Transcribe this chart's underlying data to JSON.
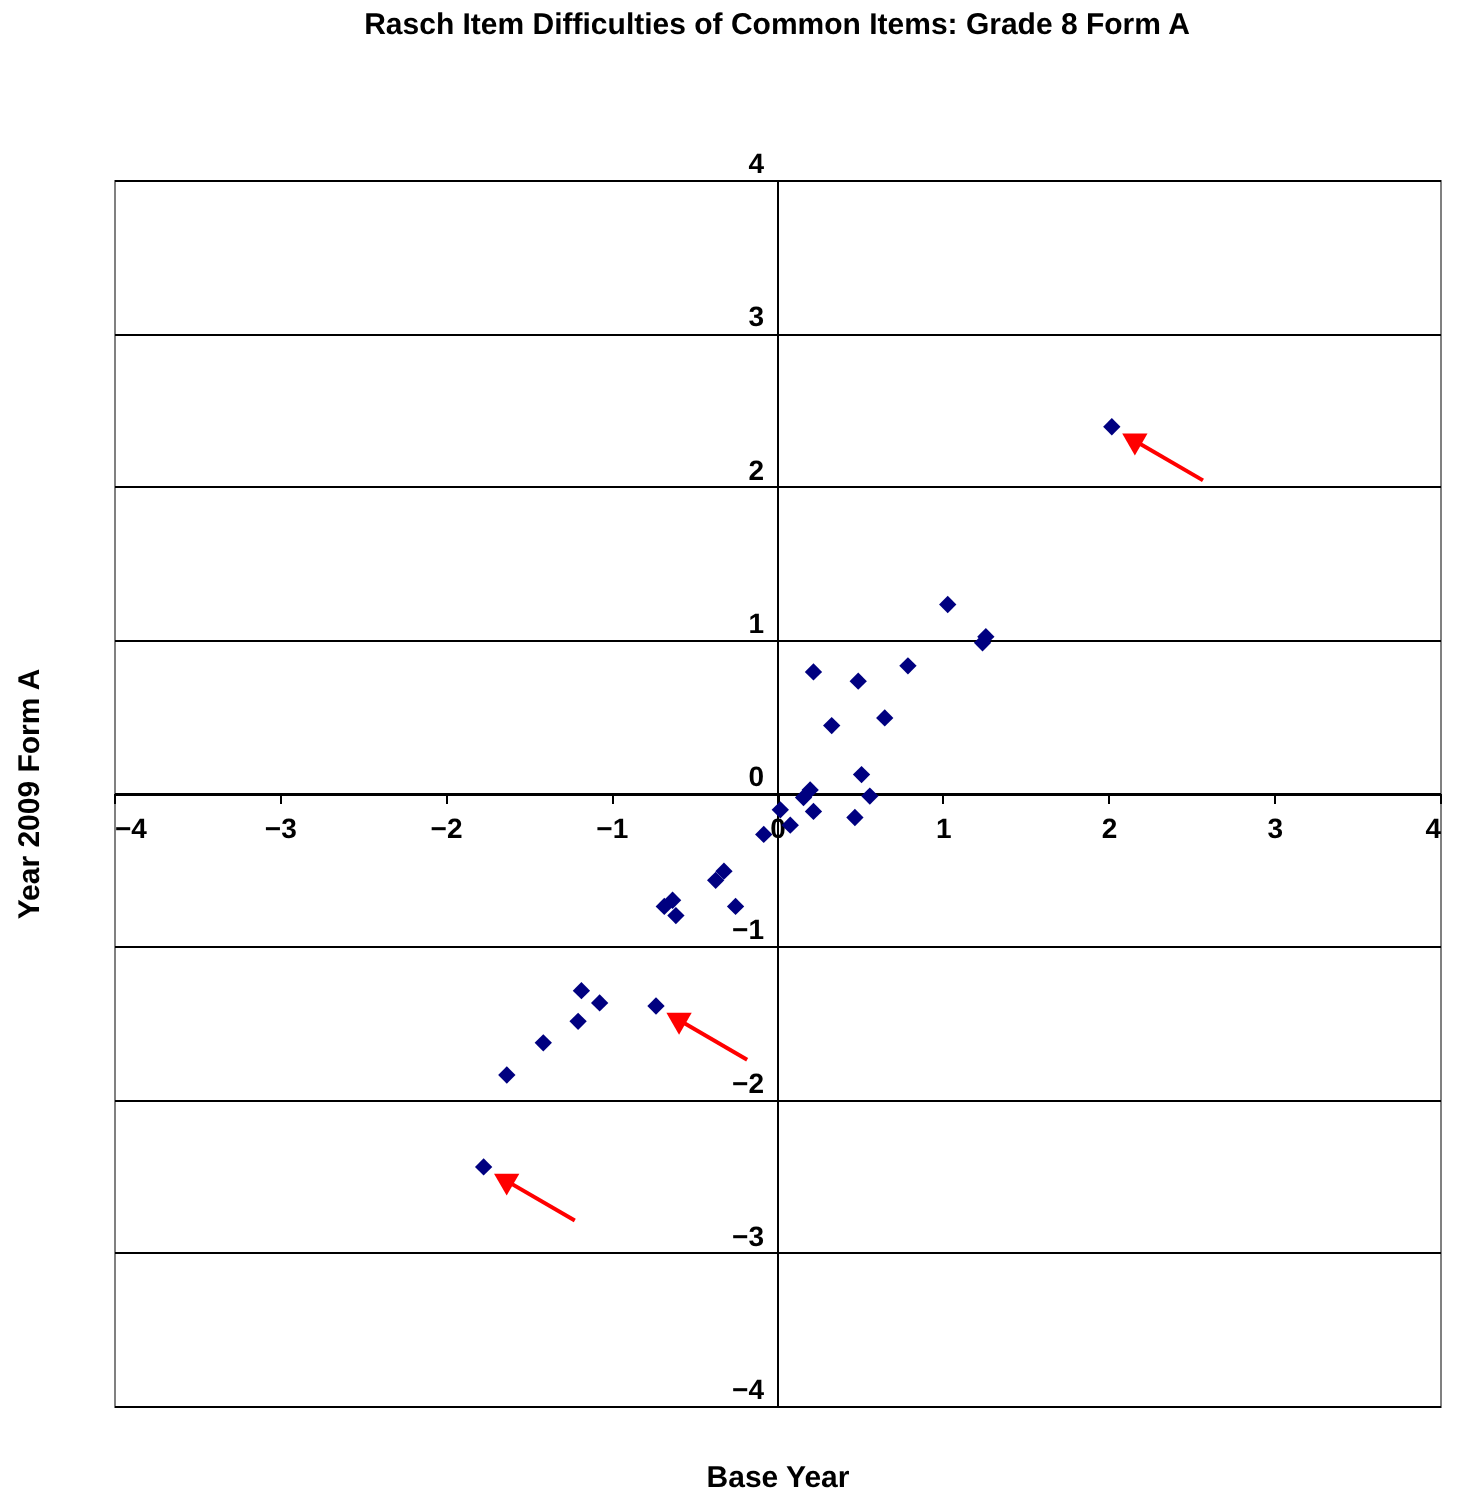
{
  "chart_data": {
    "type": "scatter",
    "title": "Rasch Item Difficulties of Common Items: Grade 8 Form A",
    "xlabel": "Base Year",
    "ylabel": "Year 2009 Form A",
    "x": [
      2.02,
      -0.73,
      -1.77,
      1.03,
      1.24,
      1.26,
      0.79,
      0.22,
      0.49,
      0.33,
      0.65,
      0.51,
      0.56,
      0.2,
      0.16,
      0.22,
      0.47,
      0.02,
      0.08,
      -0.08,
      -0.32,
      -0.37,
      -0.25,
      -0.68,
      -0.61,
      -0.63,
      -1.18,
      -1.07,
      -1.2,
      -1.41,
      -1.63
    ],
    "series": [
      {
        "color": "#000080",
        "values": [
          2.39,
          -1.39,
          -2.44,
          1.23,
          0.98,
          1.02,
          0.83,
          0.79,
          0.73,
          0.44,
          0.49,
          0.12,
          -0.02,
          0.02,
          -0.03,
          -0.12,
          -0.16,
          -0.11,
          -0.21,
          -0.27,
          -0.51,
          -0.57,
          -0.74,
          -0.74,
          -0.8,
          -0.7,
          -1.29,
          -1.37,
          -1.49,
          -1.63,
          -1.84
        ]
      }
    ],
    "xlim": [
      -4,
      4
    ],
    "ylim": [
      -4,
      4
    ],
    "xticks": [
      -4,
      -3,
      -2,
      -1,
      0,
      1,
      2,
      3,
      4
    ],
    "yticks": [
      -4,
      -3,
      -2,
      -1,
      0,
      1,
      2,
      3,
      4
    ],
    "grid": "y",
    "marker": "diamond"
  }
}
